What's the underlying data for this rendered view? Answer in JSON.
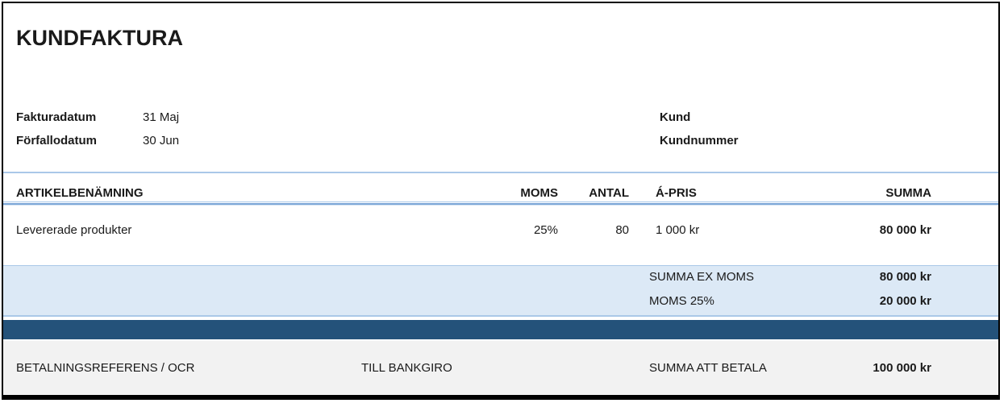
{
  "invoice": {
    "title": "KUNDFAKTURA",
    "meta": {
      "invoice_date_label": "Fakturadatum",
      "invoice_date_value": "31 Maj",
      "due_date_label": "Förfallodatum",
      "due_date_value": "30 Jun",
      "customer_label": "Kund",
      "customer_number_label": "Kundnummer"
    },
    "table": {
      "headers": {
        "artikel": "ARTIKELBENÄMNING",
        "moms": "MOMS",
        "antal": "ANTAL",
        "apris": "Á-PRIS",
        "summa": "SUMMA"
      },
      "rows": [
        {
          "artikel": "Levererade produkter",
          "moms": "25%",
          "antal": "80",
          "apris": "1 000 kr",
          "summa": "80 000 kr"
        }
      ]
    },
    "summary": [
      {
        "label": "SUMMA EX MOMS",
        "value": "80 000 kr"
      },
      {
        "label": "MOMS 25%",
        "value": "20 000 kr"
      }
    ],
    "footer": {
      "reference_label": "BETALNINGSREFERENS / OCR",
      "bankgiro_label": "TILL BANKGIRO",
      "total_label": "SUMMA ATT BETALA",
      "total_value": "100 000 kr"
    },
    "colors": {
      "accent_dark": "#24527a",
      "accent_light": "#dce9f6",
      "line_light": "#aac8e8",
      "line_medium": "#7ba6d7",
      "footer_bg": "#f2f2f2",
      "border": "#000000"
    }
  }
}
